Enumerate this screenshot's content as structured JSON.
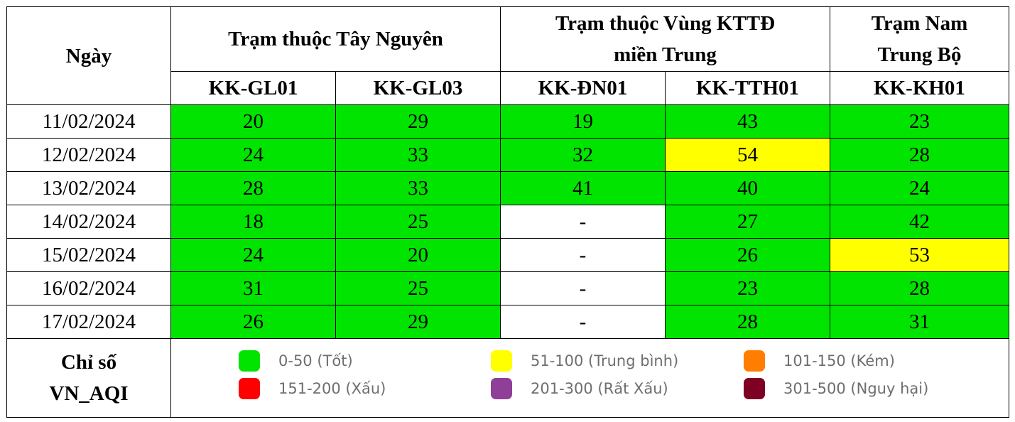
{
  "header": {
    "date_label": "Ngày",
    "groups": [
      {
        "label": "Trạm thuộc Tây Nguyên"
      },
      {
        "label_line1": "Trạm thuộc Vùng KTTĐ",
        "label_line2": "miền Trung"
      },
      {
        "label_line1": "Trạm Nam",
        "label_line2": "Trung Bộ"
      }
    ],
    "stations": [
      "KK-GL01",
      "KK-GL03",
      "KK-ĐN01",
      "KK-TTH01",
      "KK-KH01"
    ]
  },
  "rows": [
    {
      "date": "11/02/2024",
      "values": [
        "20",
        "29",
        "19",
        "43",
        "23"
      ],
      "levels": [
        "good",
        "good",
        "good",
        "good",
        "good"
      ]
    },
    {
      "date": "12/02/2024",
      "values": [
        "24",
        "33",
        "32",
        "54",
        "28"
      ],
      "levels": [
        "good",
        "good",
        "good",
        "moderate",
        "good"
      ]
    },
    {
      "date": "13/02/2024",
      "values": [
        "28",
        "33",
        "41",
        "40",
        "24"
      ],
      "levels": [
        "good",
        "good",
        "good",
        "good",
        "good"
      ]
    },
    {
      "date": "14/02/2024",
      "values": [
        "18",
        "25",
        "-",
        "27",
        "42"
      ],
      "levels": [
        "good",
        "good",
        "nodata",
        "good",
        "good"
      ]
    },
    {
      "date": "15/02/2024",
      "values": [
        "24",
        "20",
        "-",
        "26",
        "53"
      ],
      "levels": [
        "good",
        "good",
        "nodata",
        "good",
        "moderate"
      ]
    },
    {
      "date": "16/02/2024",
      "values": [
        "31",
        "25",
        "-",
        "23",
        "28"
      ],
      "levels": [
        "good",
        "good",
        "nodata",
        "good",
        "good"
      ]
    },
    {
      "date": "17/02/2024",
      "values": [
        "26",
        "29",
        "-",
        "28",
        "31"
      ],
      "levels": [
        "good",
        "good",
        "nodata",
        "good",
        "good"
      ]
    }
  ],
  "legend": {
    "title_line1": "Chỉ số",
    "title_line2": "VN_AQI",
    "items": [
      {
        "label": "0-50 (Tốt)",
        "color": "#00e400"
      },
      {
        "label": "51-100 (Trung bình)",
        "color": "#ffff00"
      },
      {
        "label": "101-150 (Kém)",
        "color": "#ff7e00"
      },
      {
        "label": "151-200 (Xấu)",
        "color": "#ff0000"
      },
      {
        "label": "201-300 (Rất Xấu)",
        "color": "#8f3f97"
      },
      {
        "label": "301-500 (Nguy hại)",
        "color": "#7e0023"
      }
    ]
  }
}
